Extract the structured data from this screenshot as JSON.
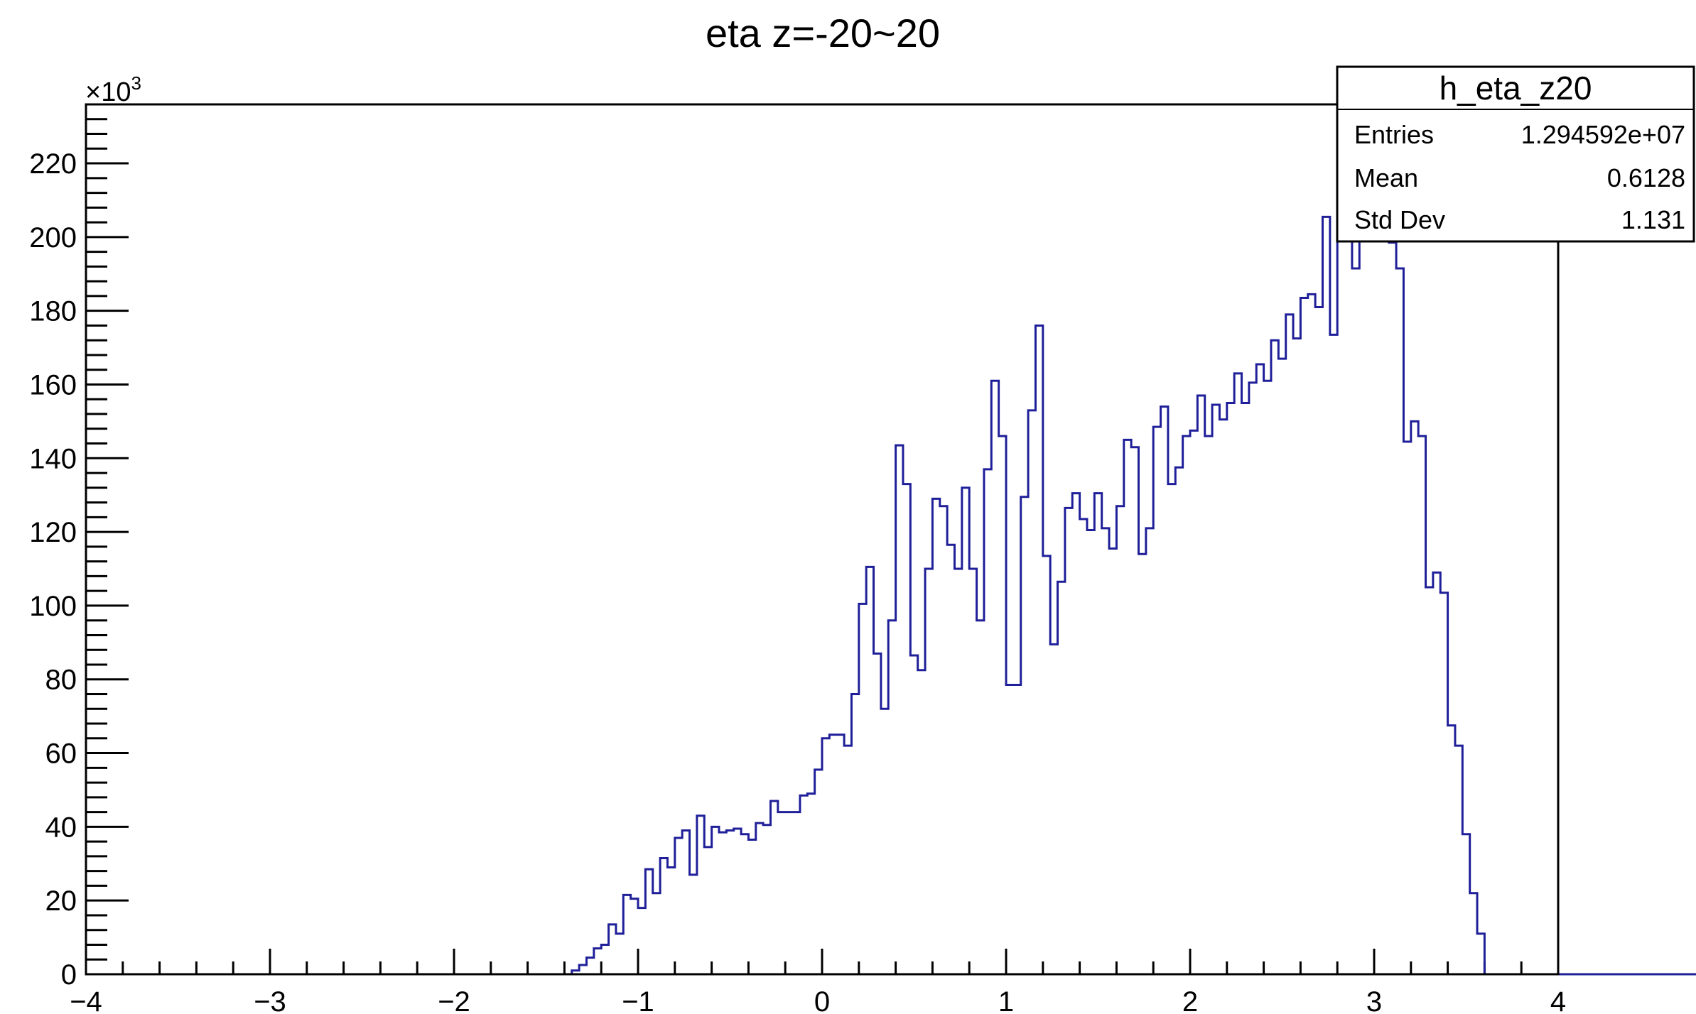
{
  "chart_data": {
    "type": "histogram",
    "title": "eta z=-20~20",
    "xlabel": "",
    "ylabel": "",
    "y_multiplier": "×10",
    "y_multiplier_exponent": "3",
    "xlim": [
      -4,
      4
    ],
    "ylim": [
      0,
      236
    ],
    "grid": false,
    "legend": "none",
    "line_color": "#1f1f99",
    "x_ticks": [
      "−4",
      "−3",
      "−2",
      "−1",
      "0",
      "1",
      "2",
      "3",
      "4"
    ],
    "y_ticks": [
      "0",
      "20",
      "40",
      "60",
      "80",
      "100",
      "120",
      "140",
      "160",
      "180",
      "200",
      "220"
    ],
    "bin_edges_start": -4,
    "bin_width": 0.04,
    "values": [
      0,
      0,
      0,
      0,
      0,
      0,
      0,
      0,
      0,
      0,
      0,
      0,
      0,
      0,
      0,
      0,
      0,
      0,
      0,
      0,
      0,
      0,
      0,
      0,
      0,
      0,
      0,
      0,
      0,
      0,
      0,
      0,
      0,
      0,
      0,
      0,
      0,
      0,
      0,
      0,
      0,
      0,
      0,
      0,
      0,
      0,
      0,
      0,
      0,
      0,
      0,
      0,
      0,
      0,
      0,
      0,
      0,
      0,
      0,
      0,
      0,
      0,
      0,
      0,
      0,
      0,
      1,
      2.5,
      4.5,
      7,
      8,
      13.5,
      11,
      21.5,
      20.5,
      18,
      28.5,
      22,
      31.5,
      29,
      37,
      39,
      27,
      43,
      34.5,
      40,
      38.5,
      39,
      39.5,
      38,
      36.5,
      41,
      40.5,
      47,
      44,
      44,
      44,
      48.5,
      49,
      55.5,
      64,
      65,
      65,
      62,
      76,
      100.5,
      110.5,
      87,
      72,
      96,
      143.5,
      133,
      86.5,
      82.5,
      110,
      129,
      127,
      116.5,
      110,
      132,
      110,
      96,
      137,
      161,
      146,
      78.5,
      78.5,
      129.5,
      153,
      176,
      113.5,
      89.5,
      106.5,
      126.5,
      130.5,
      123.5,
      120.5,
      130.5,
      121,
      115.5,
      127,
      145,
      143,
      114,
      121,
      148.5,
      154,
      133,
      137.5,
      146,
      147.5,
      157,
      146,
      154.5,
      150.5,
      155,
      163,
      155,
      160.5,
      165.5,
      161,
      172,
      167,
      179,
      172.5,
      183.5,
      184.5,
      181,
      205.5,
      173.5,
      209,
      200,
      191.5,
      209,
      224,
      200,
      206.5,
      198.5,
      191.5,
      144.5,
      150,
      146,
      105,
      109,
      103.5,
      67.5,
      62,
      38,
      22,
      11,
      0,
      0,
      0,
      0,
      0,
      0,
      0,
      0,
      0,
      0,
      0,
      0,
      0,
      0,
      0,
      0,
      0,
      0,
      0,
      0,
      0,
      0,
      0,
      0,
      0,
      0,
      0,
      0,
      0,
      0,
      0,
      0,
      0,
      0,
      0,
      0,
      0,
      0,
      0,
      0,
      0,
      0,
      0,
      0,
      0,
      0,
      0
    ]
  },
  "stats_box": {
    "name": "h_eta_z20",
    "entries_label": "Entries",
    "entries_value": "1.294592e+07",
    "mean_label": "Mean",
    "mean_value": "0.6128",
    "stddev_label": "Std Dev",
    "stddev_value": "1.131"
  }
}
